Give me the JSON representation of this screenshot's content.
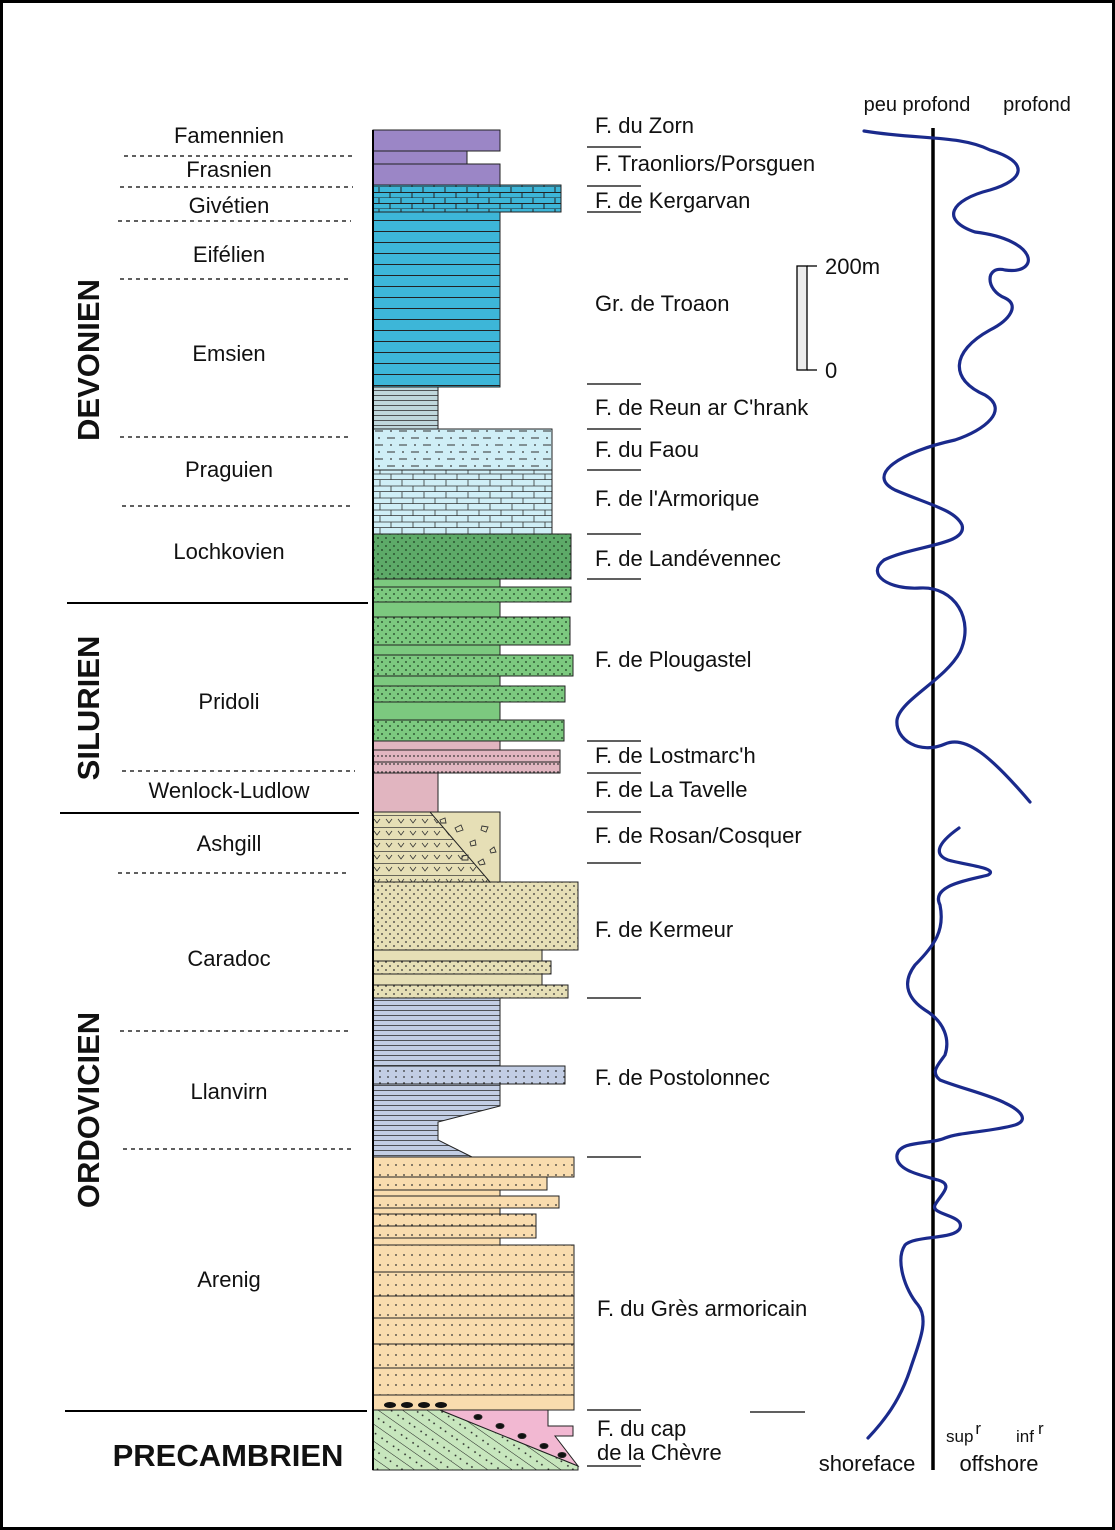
{
  "periods": [
    {
      "name": "DEVONIEN"
    },
    {
      "name": "SILURIEN"
    },
    {
      "name": "ORDOVICIEN"
    },
    {
      "name": "PRECAMBRIEN"
    }
  ],
  "stages": [
    "Famennien",
    "Frasnien",
    "Givétien",
    "Eifélien",
    "Emsien",
    "Praguien",
    "Lochkovien",
    "Pridoli",
    "Wenlock-Ludlow",
    "Ashgill",
    "Caradoc",
    "Llanvirn",
    "Arenig"
  ],
  "formations": [
    "F. du Zorn",
    "F. Traonliors/Porsguen",
    "F. de Kergarvan",
    "Gr. de Troaon",
    "F. de Reun ar C'hrank",
    "F. du Faou",
    "F. de l'Armorique",
    "F. de Landévennec",
    "F. de Plougastel",
    "F. de Lostmarc'h",
    "F. de La Tavelle",
    "F. de Rosan/Cosquer",
    "F. de Kermeur",
    "F. de Postolonnec",
    "F. du Grès armoricain",
    "F. du cap",
    "de la Chèvre"
  ],
  "scale_bar": {
    "top_label": "200m",
    "bottom_label": "0"
  },
  "bathymetry": {
    "top_left": "peu profond",
    "top_right": "profond",
    "bottom_left": "shoreface",
    "sup": "sup",
    "sup_r": "r",
    "inf": "inf",
    "inf_r": "r",
    "bottom_right": "offshore"
  },
  "colors": {
    "famennien_purple": "#9b86c6",
    "devonian_blue": "#3db6d8",
    "light_blue": "#cfeef6",
    "green_dark": "#5daa68",
    "green": "#7cc97f",
    "pink": "#e1b5c0",
    "tan": "#e6dfb6",
    "slate": "#c2cde4",
    "orange": "#f9dcae",
    "precambrian_green": "#c7e6bd",
    "curve": "#1a2a8c"
  }
}
